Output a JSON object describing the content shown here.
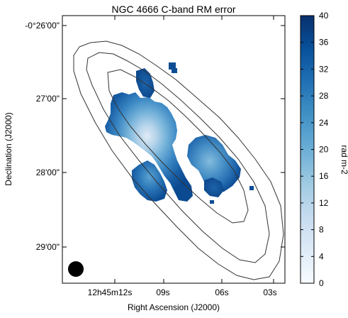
{
  "chart_data": {
    "type": "heatmap",
    "title": "NGC 4666   C-band   RM error",
    "xlabel": "Right Ascension (J2000)",
    "ylabel": "Declination (J2000)",
    "x_ticks": [
      "12h45m12s",
      "09s",
      "06s",
      "03s"
    ],
    "y_ticks": [
      "-0°26'00\"",
      "27'00\"",
      "28'00\"",
      "29'00\""
    ],
    "colorbar": {
      "label": "rad m-2",
      "range": [
        0,
        40
      ],
      "ticks": [
        "0",
        "4",
        "8",
        "12",
        "16",
        "20",
        "24",
        "28",
        "32",
        "36",
        "40"
      ],
      "colormap": "Blues",
      "colors": [
        "#f7fbff",
        "#deebf7",
        "#c6dbef",
        "#9ecae1",
        "#6baed6",
        "#4292c6",
        "#2171b5",
        "#08519c",
        "#08306b"
      ]
    },
    "contours": "total intensity contours (3 levels)",
    "beam": "filled circle, lower-left"
  }
}
